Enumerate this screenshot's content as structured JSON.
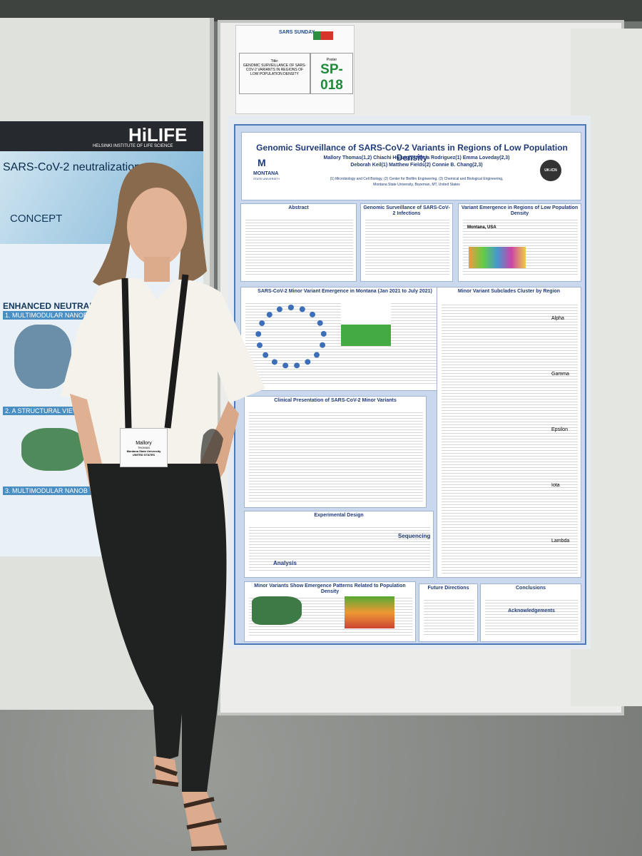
{
  "left_poster": {
    "logo": "HiLIFE",
    "institute": "HELSINKI INSTITUTE OF LIFE SCIENCE",
    "title": "SARS-CoV-2 neutralization",
    "sections": [
      "CONCEPT",
      "ENHANCED NEUTRAL",
      "1. MULTIMODULAR NANOBO",
      "2. A STRUCTURAL VIEW",
      "3. MULTIMODULAR NANOB"
    ]
  },
  "sign": {
    "event": "SARS SUNDAY",
    "title_label": "Title:",
    "title": "GENOMIC SURVEILLANCE OF SARS-COV-2 VARIANTS IN REGIONS OF LOW POPULATION DENSITY",
    "poster_label": "Poster",
    "poster_id": "SP-018"
  },
  "poster": {
    "title": "Genomic Surveillance of SARS-CoV-2 Variants in Regions of Low Population Density",
    "authors": [
      "Mallory Thomas(1,2) Chiachi Hwang(2) Maria Rodriguez(1) Emma Loveday(2,3)",
      "Deborah Keil(1) Matthew Fields(2) Connie B. Chang(2,3)"
    ],
    "affiliations": [
      "(1) Microbiology and Cell Biology, (2) Center for Biofilm Engineering, (3) Chemical and Biological Engineering,",
      "Montana State University, Bozeman, MT, United States"
    ],
    "university": [
      "MONTANA",
      "STATE UNIVERSITY"
    ],
    "center": "UK-ICN",
    "sections": [
      "Abstract",
      "Genomic Surveillance of SARS-CoV-2 Infections",
      "Variant Emergence in Regions of Low Population Density",
      "SARS-CoV-2 Minor Variant Emergence in Montana (Jan 2021 to July 2021)",
      "Minor Variant Subclades Cluster by Region",
      "Clinical Presentation of SARS-CoV-2 Minor Variants",
      "Experimental Design",
      "Minor Variants Show Emergence Patterns Related to Population Density",
      "Future Directions",
      "Conclusions"
    ],
    "subheading": "Acknowledgements",
    "map_label": "Montana, USA",
    "clade_labels": [
      "Alpha",
      "Gamma",
      "Epsilon",
      "Iota",
      "Lambda"
    ],
    "design_labels": [
      "Sequencing",
      "Analysis"
    ]
  },
  "badge": {
    "name": "Mallory",
    "surname": "THOMAS",
    "affiliation": "Montana State University",
    "country": "UNITED STATES"
  }
}
